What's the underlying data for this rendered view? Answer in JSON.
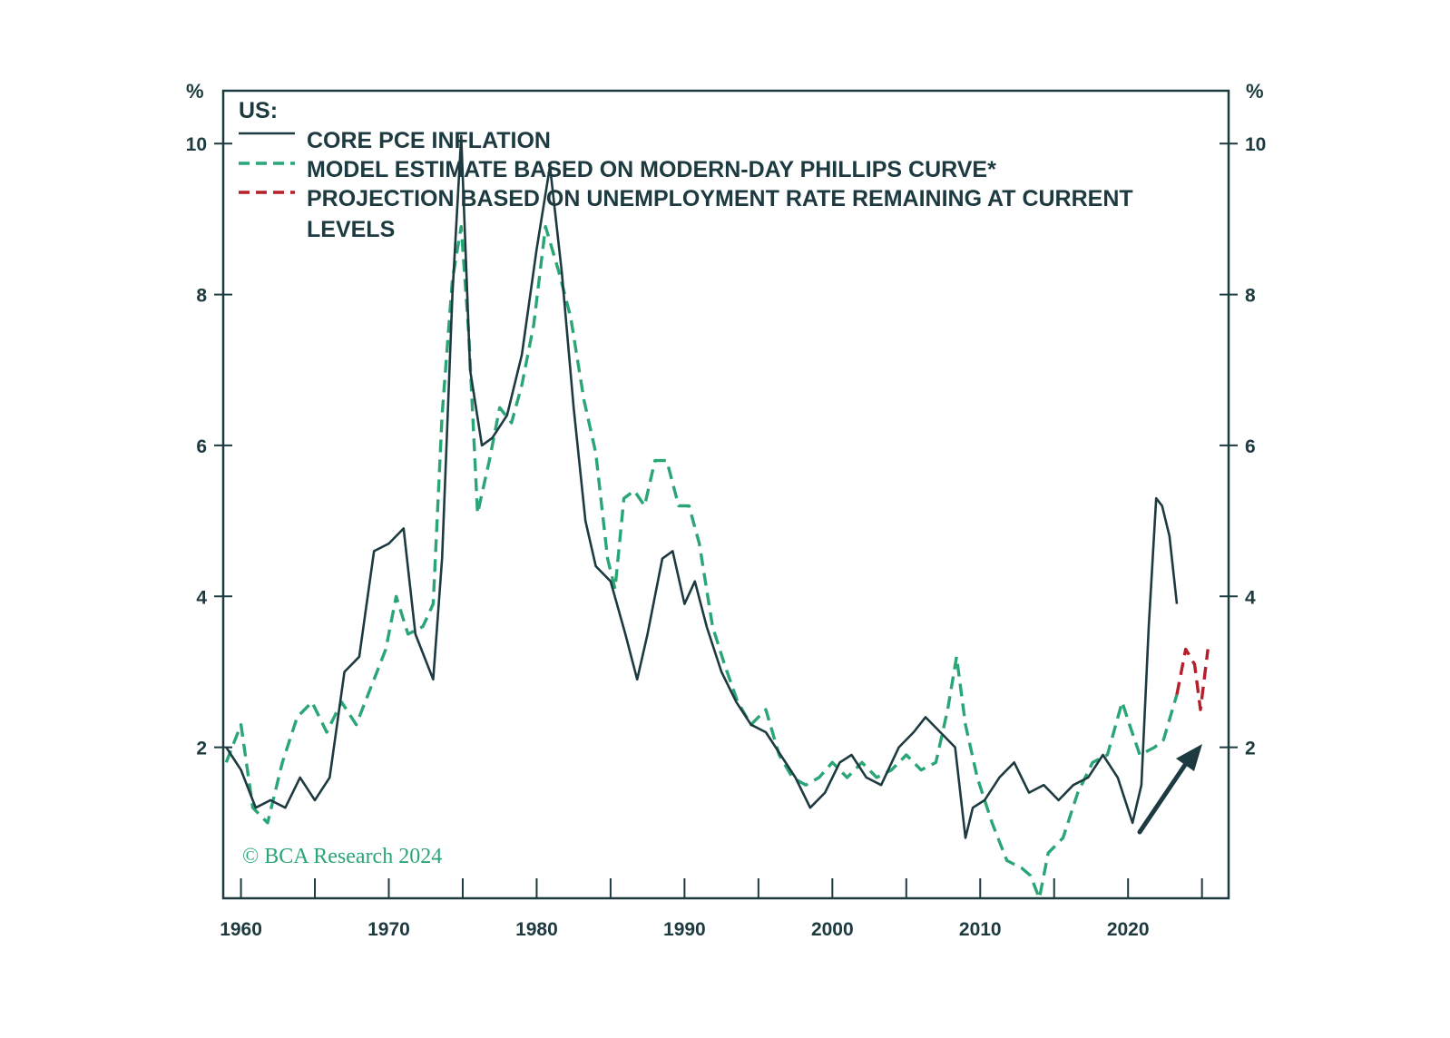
{
  "colors": {
    "frame": "#1c3a3f",
    "core": "#1c3a3f",
    "model": "#2aa676",
    "projection": "#b51f2a",
    "credit": "#2aa676"
  },
  "chart_data": {
    "type": "line",
    "title": "US:",
    "ylabel_left": "%",
    "ylabel_right": "%",
    "xlim": [
      1958.8,
      2026.8
    ],
    "ylim": [
      0,
      10.7
    ],
    "x_ticks": [
      1960,
      1970,
      1980,
      1990,
      2000,
      2010,
      2020
    ],
    "x_tick_labels": [
      "1960",
      "1970",
      "1980",
      "1990",
      "2000",
      "2010",
      "2020"
    ],
    "y_ticks": [
      2,
      4,
      6,
      8,
      10
    ],
    "y_tick_labels": [
      "2",
      "4",
      "6",
      "8",
      "10"
    ],
    "legend": {
      "title": "US:",
      "entries": [
        {
          "label": "CORE PCE INFLATION"
        },
        {
          "label": "MODEL ESTIMATE BASED ON MODERN-DAY PHILLIPS CURVE*"
        },
        {
          "label_line1": "PROJECTION BASED ON UNEMPLOYMENT RATE REMAINING AT CURRENT",
          "label_line2": "LEVELS"
        }
      ]
    },
    "annotation": "arrow pointing up-right toward projection",
    "credit": "© BCA Research 2024",
    "series": [
      {
        "name": "CORE PCE INFLATION",
        "style": "solid",
        "points": [
          [
            1959.0,
            2.0
          ],
          [
            1960.0,
            1.7
          ],
          [
            1961.0,
            1.2
          ],
          [
            1962.0,
            1.3
          ],
          [
            1963.0,
            1.2
          ],
          [
            1964.0,
            1.6
          ],
          [
            1965.0,
            1.3
          ],
          [
            1966.0,
            1.6
          ],
          [
            1967.0,
            3.0
          ],
          [
            1968.0,
            3.2
          ],
          [
            1969.0,
            4.6
          ],
          [
            1970.0,
            4.7
          ],
          [
            1971.0,
            4.9
          ],
          [
            1971.8,
            3.5
          ],
          [
            1973.0,
            2.9
          ],
          [
            1973.6,
            4.5
          ],
          [
            1974.3,
            8.0
          ],
          [
            1974.9,
            10.1
          ],
          [
            1975.5,
            7.0
          ],
          [
            1976.3,
            6.0
          ],
          [
            1977.0,
            6.1
          ],
          [
            1978.0,
            6.4
          ],
          [
            1979.0,
            7.2
          ],
          [
            1980.0,
            8.6
          ],
          [
            1980.9,
            9.7
          ],
          [
            1981.7,
            8.3
          ],
          [
            1982.5,
            6.5
          ],
          [
            1983.3,
            5.0
          ],
          [
            1984.0,
            4.4
          ],
          [
            1985.0,
            4.2
          ],
          [
            1986.0,
            3.5
          ],
          [
            1986.8,
            2.9
          ],
          [
            1987.5,
            3.5
          ],
          [
            1988.5,
            4.5
          ],
          [
            1989.2,
            4.6
          ],
          [
            1990.0,
            3.9
          ],
          [
            1990.7,
            4.2
          ],
          [
            1991.5,
            3.6
          ],
          [
            1992.5,
            3.0
          ],
          [
            1993.5,
            2.6
          ],
          [
            1994.5,
            2.3
          ],
          [
            1995.5,
            2.2
          ],
          [
            1996.5,
            1.9
          ],
          [
            1997.5,
            1.6
          ],
          [
            1998.5,
            1.2
          ],
          [
            1999.5,
            1.4
          ],
          [
            2000.5,
            1.8
          ],
          [
            2001.3,
            1.9
          ],
          [
            2002.3,
            1.6
          ],
          [
            2003.3,
            1.5
          ],
          [
            2004.5,
            2.0
          ],
          [
            2005.5,
            2.2
          ],
          [
            2006.3,
            2.4
          ],
          [
            2007.3,
            2.2
          ],
          [
            2008.3,
            2.0
          ],
          [
            2009.0,
            0.8
          ],
          [
            2009.5,
            1.2
          ],
          [
            2010.3,
            1.3
          ],
          [
            2011.3,
            1.6
          ],
          [
            2012.3,
            1.8
          ],
          [
            2013.3,
            1.4
          ],
          [
            2014.3,
            1.5
          ],
          [
            2015.3,
            1.3
          ],
          [
            2016.3,
            1.5
          ],
          [
            2017.3,
            1.6
          ],
          [
            2018.3,
            1.9
          ],
          [
            2019.3,
            1.6
          ],
          [
            2020.3,
            1.0
          ],
          [
            2020.9,
            1.5
          ],
          [
            2021.4,
            3.6
          ],
          [
            2021.9,
            5.3
          ],
          [
            2022.3,
            5.2
          ],
          [
            2022.8,
            4.8
          ],
          [
            2023.3,
            3.9
          ]
        ]
      },
      {
        "name": "MODEL ESTIMATE BASED ON MODERN-DAY PHILLIPS CURVE*",
        "style": "dashed",
        "points": [
          [
            1959.0,
            1.8
          ],
          [
            1960.0,
            2.3
          ],
          [
            1960.8,
            1.2
          ],
          [
            1961.8,
            1.0
          ],
          [
            1962.8,
            1.8
          ],
          [
            1963.8,
            2.4
          ],
          [
            1964.8,
            2.6
          ],
          [
            1965.8,
            2.2
          ],
          [
            1966.8,
            2.6
          ],
          [
            1967.8,
            2.3
          ],
          [
            1968.8,
            2.8
          ],
          [
            1969.8,
            3.3
          ],
          [
            1970.5,
            4.0
          ],
          [
            1971.3,
            3.5
          ],
          [
            1972.3,
            3.6
          ],
          [
            1973.0,
            3.9
          ],
          [
            1973.6,
            6.4
          ],
          [
            1974.3,
            8.2
          ],
          [
            1974.9,
            8.9
          ],
          [
            1975.4,
            7.5
          ],
          [
            1976.0,
            5.1
          ],
          [
            1976.8,
            5.8
          ],
          [
            1977.5,
            6.5
          ],
          [
            1978.3,
            6.3
          ],
          [
            1979.0,
            6.8
          ],
          [
            1979.8,
            7.6
          ],
          [
            1980.6,
            8.9
          ],
          [
            1981.5,
            8.3
          ],
          [
            1982.3,
            7.7
          ],
          [
            1983.2,
            6.6
          ],
          [
            1984.0,
            5.9
          ],
          [
            1984.8,
            4.5
          ],
          [
            1985.3,
            4.1
          ],
          [
            1985.9,
            5.3
          ],
          [
            1986.6,
            5.4
          ],
          [
            1987.3,
            5.2
          ],
          [
            1988.0,
            5.8
          ],
          [
            1988.8,
            5.8
          ],
          [
            1989.6,
            5.2
          ],
          [
            1990.3,
            5.2
          ],
          [
            1991.0,
            4.7
          ],
          [
            1991.9,
            3.6
          ],
          [
            1992.7,
            3.1
          ],
          [
            1993.6,
            2.6
          ],
          [
            1994.5,
            2.3
          ],
          [
            1995.5,
            2.5
          ],
          [
            1996.4,
            1.9
          ],
          [
            1997.3,
            1.6
          ],
          [
            1998.2,
            1.5
          ],
          [
            1999.1,
            1.6
          ],
          [
            2000.0,
            1.8
          ],
          [
            2001.0,
            1.6
          ],
          [
            2002.0,
            1.8
          ],
          [
            2003.0,
            1.6
          ],
          [
            2004.0,
            1.7
          ],
          [
            2005.0,
            1.9
          ],
          [
            2006.0,
            1.7
          ],
          [
            2007.0,
            1.8
          ],
          [
            2007.8,
            2.5
          ],
          [
            2008.4,
            3.2
          ],
          [
            2009.0,
            2.3
          ],
          [
            2009.8,
            1.6
          ],
          [
            2010.8,
            1.0
          ],
          [
            2011.8,
            0.5
          ],
          [
            2012.8,
            0.4
          ],
          [
            2013.4,
            0.3
          ],
          [
            2014.0,
            0.0
          ],
          [
            2014.6,
            0.6
          ],
          [
            2015.6,
            0.8
          ],
          [
            2016.6,
            1.4
          ],
          [
            2017.6,
            1.8
          ],
          [
            2018.6,
            1.9
          ],
          [
            2019.6,
            2.6
          ],
          [
            2020.1,
            2.3
          ],
          [
            2020.8,
            1.9
          ],
          [
            2021.8,
            2.0
          ],
          [
            2022.4,
            2.1
          ],
          [
            2023.3,
            2.7
          ]
        ]
      },
      {
        "name": "PROJECTION BASED ON UNEMPLOYMENT RATE REMAINING AT CURRENT LEVELS",
        "style": "dashed",
        "points": [
          [
            2023.3,
            2.7
          ],
          [
            2023.9,
            3.3
          ],
          [
            2024.5,
            3.1
          ],
          [
            2024.9,
            2.5
          ],
          [
            2025.4,
            3.3
          ]
        ]
      }
    ]
  }
}
